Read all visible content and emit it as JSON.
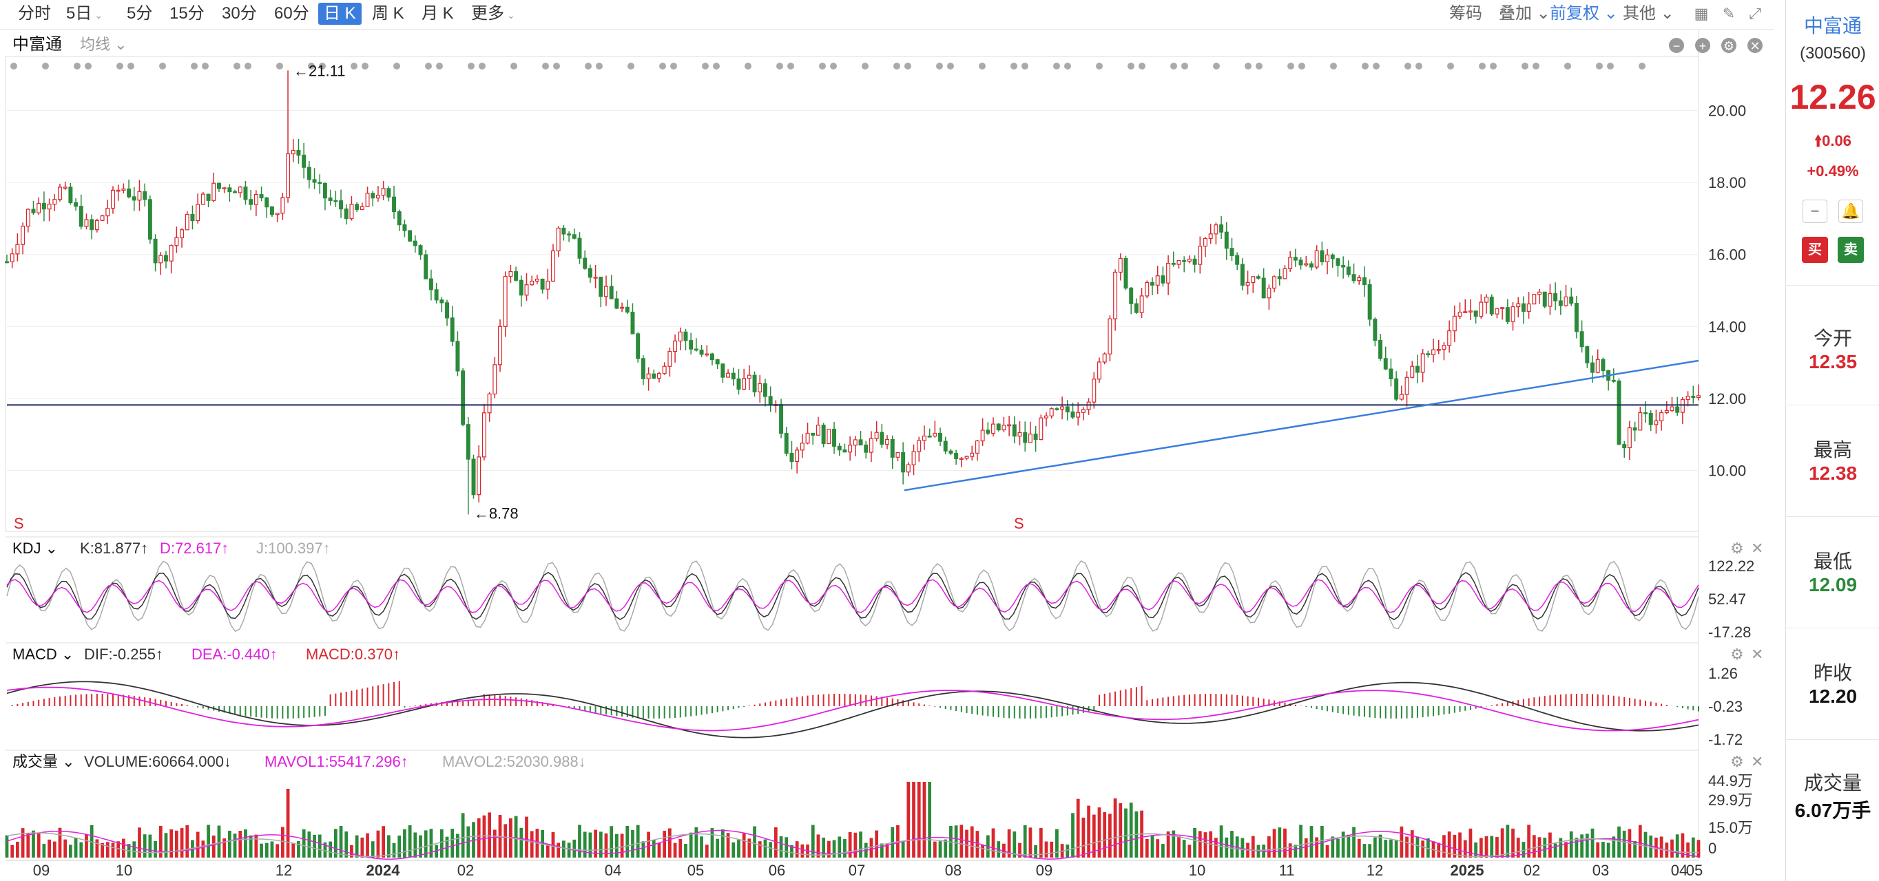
{
  "toolbar": {
    "periods": [
      {
        "label": "分时",
        "caret": false,
        "active": false
      },
      {
        "label": "5日",
        "caret": true,
        "active": false
      },
      {
        "label": "5分",
        "caret": false,
        "active": false
      },
      {
        "label": "15分",
        "caret": false,
        "active": false
      },
      {
        "label": "30分",
        "caret": false,
        "active": false
      },
      {
        "label": "60分",
        "caret": false,
        "active": false
      },
      {
        "label": "日 K",
        "caret": false,
        "active": true
      },
      {
        "label": "周 K",
        "caret": false,
        "active": false
      },
      {
        "label": "月 K",
        "caret": false,
        "active": false
      },
      {
        "label": "更多",
        "caret": true,
        "active": false
      }
    ],
    "right": {
      "chips": "筹码",
      "overlay": "叠加",
      "adjust": "前复权",
      "other": "其他"
    }
  },
  "main_panel": {
    "stock_name": "中富通",
    "ma_dropdown": "均线",
    "high_label": "21.11",
    "low_label": "8.78",
    "s_marker": "S"
  },
  "kdj": {
    "name": "KDJ",
    "k": "K:81.877↑",
    "d": "D:72.617↑",
    "j": "J:100.397↑",
    "ticks": [
      "122.22",
      "52.47",
      "-17.28"
    ]
  },
  "macd": {
    "name": "MACD",
    "dif": "DIF:-0.255↑",
    "dea": "DEA:-0.440↑",
    "macd": "MACD:0.370↑",
    "ticks": [
      "1.26",
      "-0.23",
      "-1.72"
    ]
  },
  "volume": {
    "name": "成交量",
    "vol": "VOLUME:60664.000↓",
    "mavol1": "MAVOL1:55417.296↑",
    "mavol2": "MAVOL2:52030.988↓",
    "ticks": [
      "44.9万",
      "29.9万",
      "15.0万",
      "0"
    ]
  },
  "x_axis": {
    "labels": [
      "09",
      "10",
      "12",
      "2024",
      "02",
      "04",
      "05",
      "06",
      "07",
      "08",
      "09",
      "10",
      "11",
      "12",
      "2025",
      "02",
      "03",
      "04",
      "05"
    ]
  },
  "colors": {
    "up": "#d9272e",
    "down": "#2a8a3a",
    "accent": "#3b7ddd",
    "ma_pink": "#e020e0"
  },
  "sidebar": {
    "name": "中富通",
    "code": "(300560)",
    "price": "12.26",
    "change": "0.06",
    "change_pct": "+0.49%",
    "buy": "买",
    "sell": "卖",
    "stats": [
      {
        "label": "今开",
        "value": "12.35",
        "color": "red"
      },
      {
        "label": "最高",
        "value": "12.38",
        "color": "red"
      },
      {
        "label": "最低",
        "value": "12.09",
        "color": "green"
      },
      {
        "label": "昨收",
        "value": "12.20",
        "color": "black"
      },
      {
        "label": "成交量",
        "value": "6.07万手",
        "color": "black"
      }
    ]
  },
  "chart_data": {
    "type": "candlestick",
    "title": "中富通",
    "y_ticks": [
      10.0,
      12.0,
      14.0,
      16.0,
      18.0,
      20.0
    ],
    "ylim": [
      8.5,
      21.5
    ],
    "x_labels": [
      "09",
      "10",
      "12",
      "2024",
      "02",
      "04",
      "05",
      "06",
      "07",
      "08",
      "09",
      "10",
      "11",
      "12",
      "2025",
      "02",
      "03",
      "04",
      "05"
    ],
    "high": 21.11,
    "low": 8.78,
    "close_path": [
      {
        "x": 0,
        "y": 15.8
      },
      {
        "x": 18,
        "y": 17.2
      },
      {
        "x": 45,
        "y": 17.8
      },
      {
        "x": 70,
        "y": 16.6
      },
      {
        "x": 95,
        "y": 17.9
      },
      {
        "x": 115,
        "y": 17.4
      },
      {
        "x": 125,
        "y": 15.7
      },
      {
        "x": 150,
        "y": 16.9
      },
      {
        "x": 170,
        "y": 17.8
      },
      {
        "x": 190,
        "y": 17.9
      },
      {
        "x": 210,
        "y": 17.5
      },
      {
        "x": 228,
        "y": 17.2
      },
      {
        "x": 237,
        "y": 19.2
      },
      {
        "x": 255,
        "y": 17.9
      },
      {
        "x": 272,
        "y": 17.4
      },
      {
        "x": 290,
        "y": 17.1
      },
      {
        "x": 310,
        "y": 17.8
      },
      {
        "x": 330,
        "y": 16.9
      },
      {
        "x": 350,
        "y": 15.4
      },
      {
        "x": 365,
        "y": 14.6
      },
      {
        "x": 378,
        "y": 12.1
      },
      {
        "x": 388,
        "y": 9.2
      },
      {
        "x": 396,
        "y": 11.2
      },
      {
        "x": 408,
        "y": 12.9
      },
      {
        "x": 415,
        "y": 15.6
      },
      {
        "x": 430,
        "y": 15.0
      },
      {
        "x": 450,
        "y": 15.2
      },
      {
        "x": 460,
        "y": 16.8
      },
      {
        "x": 475,
        "y": 16.3
      },
      {
        "x": 495,
        "y": 15.0
      },
      {
        "x": 515,
        "y": 14.4
      },
      {
        "x": 532,
        "y": 12.6
      },
      {
        "x": 545,
        "y": 12.9
      },
      {
        "x": 560,
        "y": 13.8
      },
      {
        "x": 580,
        "y": 13.2
      },
      {
        "x": 600,
        "y": 12.6
      },
      {
        "x": 620,
        "y": 12.4
      },
      {
        "x": 640,
        "y": 11.9
      },
      {
        "x": 652,
        "y": 10.4
      },
      {
        "x": 670,
        "y": 11.2
      },
      {
        "x": 690,
        "y": 10.8
      },
      {
        "x": 710,
        "y": 10.6
      },
      {
        "x": 730,
        "y": 10.9
      },
      {
        "x": 750,
        "y": 9.9
      },
      {
        "x": 760,
        "y": 10.8
      },
      {
        "x": 775,
        "y": 10.9
      },
      {
        "x": 795,
        "y": 10.4
      },
      {
        "x": 815,
        "y": 11.0
      },
      {
        "x": 832,
        "y": 11.2
      },
      {
        "x": 850,
        "y": 10.8
      },
      {
        "x": 870,
        "y": 11.5
      },
      {
        "x": 890,
        "y": 11.7
      },
      {
        "x": 905,
        "y": 12.2
      },
      {
        "x": 918,
        "y": 13.8
      },
      {
        "x": 926,
        "y": 16.5
      },
      {
        "x": 935,
        "y": 14.3
      },
      {
        "x": 950,
        "y": 15.0
      },
      {
        "x": 970,
        "y": 15.6
      },
      {
        "x": 990,
        "y": 15.9
      },
      {
        "x": 1010,
        "y": 16.9
      },
      {
        "x": 1030,
        "y": 15.3
      },
      {
        "x": 1050,
        "y": 15.0
      },
      {
        "x": 1070,
        "y": 15.8
      },
      {
        "x": 1090,
        "y": 15.9
      },
      {
        "x": 1110,
        "y": 15.6
      },
      {
        "x": 1130,
        "y": 15.4
      },
      {
        "x": 1145,
        "y": 13.0
      },
      {
        "x": 1160,
        "y": 12.1
      },
      {
        "x": 1175,
        "y": 12.9
      },
      {
        "x": 1195,
        "y": 13.6
      },
      {
        "x": 1215,
        "y": 14.4
      },
      {
        "x": 1235,
        "y": 14.6
      },
      {
        "x": 1255,
        "y": 14.3
      },
      {
        "x": 1270,
        "y": 14.7
      },
      {
        "x": 1290,
        "y": 14.8
      },
      {
        "x": 1305,
        "y": 14.5
      },
      {
        "x": 1315,
        "y": 13.1
      },
      {
        "x": 1330,
        "y": 12.8
      },
      {
        "x": 1340,
        "y": 12.6
      },
      {
        "x": 1345,
        "y": 10.2
      },
      {
        "x": 1355,
        "y": 11.3
      },
      {
        "x": 1375,
        "y": 11.5
      },
      {
        "x": 1395,
        "y": 11.7
      },
      {
        "x": 1410,
        "y": 12.26
      }
    ]
  }
}
